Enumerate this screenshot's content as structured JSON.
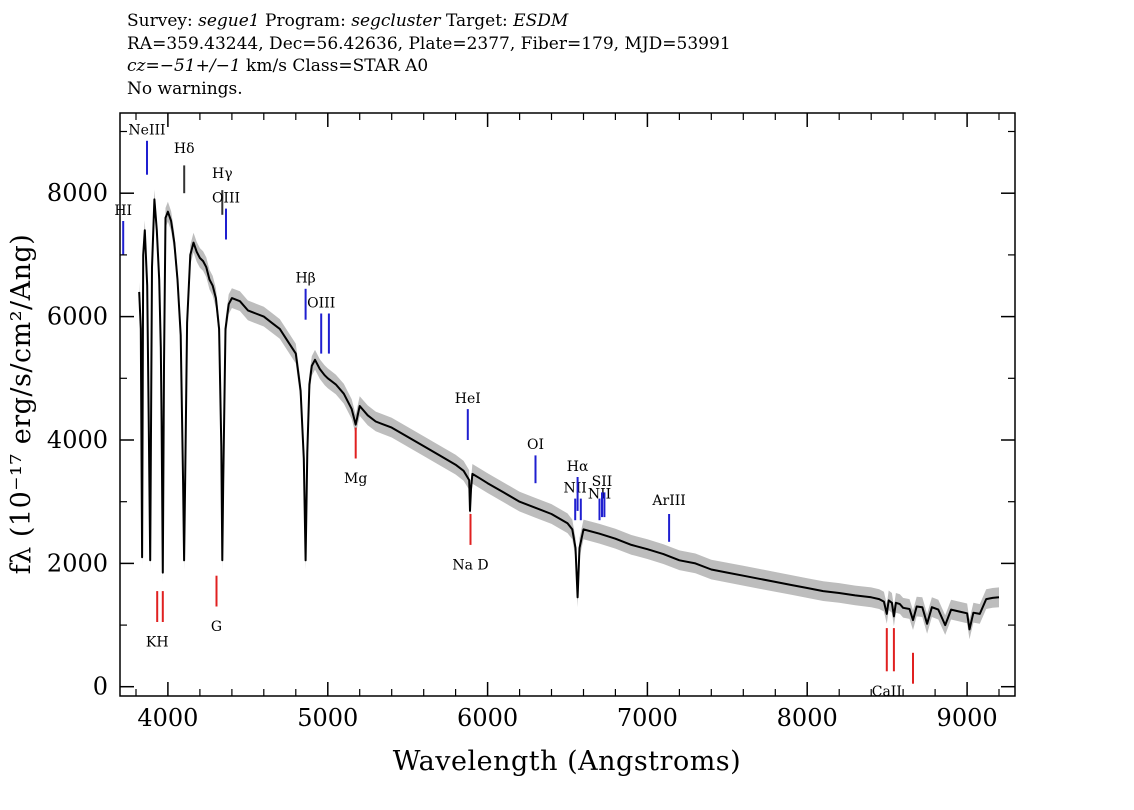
{
  "header": {
    "line1": {
      "survey_label": "Survey:",
      "survey": "segue1",
      "program_label": "Program:",
      "program": "segcluster",
      "target_label": "Target:",
      "target": "ESDM"
    },
    "line2": "RA=359.43244, Dec=56.42636, Plate=2377, Fiber=179, MJD=53991",
    "line3": {
      "cz_label": "cz=",
      "cz_value": "−51+/−1",
      "cz_rest": " km/s Class=STAR A0"
    },
    "line4": "No warnings."
  },
  "chart_data": {
    "type": "line",
    "title": "",
    "xlabel": "Wavelength (Angstroms)",
    "ylabel": "fλ (10⁻¹⁷ erg/s/cm²/Ang)",
    "xlim": [
      3700,
      9300
    ],
    "ylim": [
      -150,
      9300
    ],
    "x_ticks": [
      {
        "value": 4000,
        "label": "4000"
      },
      {
        "value": 5000,
        "label": "5000"
      },
      {
        "value": 6000,
        "label": "6000"
      },
      {
        "value": 7000,
        "label": "7000"
      },
      {
        "value": 8000,
        "label": "8000"
      },
      {
        "value": 9000,
        "label": "9000"
      }
    ],
    "y_ticks": [
      {
        "value": 0,
        "label": "0"
      },
      {
        "value": 2000,
        "label": "2000"
      },
      {
        "value": 4000,
        "label": "4000"
      },
      {
        "value": 6000,
        "label": "6000"
      },
      {
        "value": 8000,
        "label": "8000"
      }
    ],
    "series": [
      {
        "name": "spectrum",
        "x": [
          3820,
          3830,
          3838,
          3845,
          3855,
          3870,
          3880,
          3889,
          3900,
          3915,
          3930,
          3945,
          3955,
          3960,
          3968,
          3975,
          3985,
          4000,
          4020,
          4040,
          4060,
          4080,
          4095,
          4101,
          4108,
          4120,
          4140,
          4160,
          4180,
          4200,
          4220,
          4240,
          4260,
          4280,
          4300,
          4320,
          4334,
          4340,
          4346,
          4360,
          4380,
          4400,
          4450,
          4500,
          4550,
          4600,
          4650,
          4700,
          4750,
          4800,
          4830,
          4850,
          4861,
          4872,
          4885,
          4900,
          4920,
          4950,
          4980,
          5000,
          5050,
          5100,
          5150,
          5175,
          5200,
          5250,
          5300,
          5400,
          5500,
          5600,
          5700,
          5800,
          5850,
          5885,
          5890,
          5896,
          5905,
          5950,
          6000,
          6100,
          6200,
          6300,
          6400,
          6500,
          6530,
          6550,
          6563,
          6575,
          6600,
          6700,
          6800,
          6900,
          7000,
          7100,
          7200,
          7300,
          7400,
          7500,
          7600,
          7700,
          7800,
          7900,
          8000,
          8100,
          8200,
          8300,
          8400,
          8450,
          8480,
          8498,
          8510,
          8530,
          8542,
          8555,
          8580,
          8600,
          8640,
          8662,
          8685,
          8720,
          8750,
          8780,
          8820,
          8863,
          8900,
          8950,
          9000,
          9015,
          9040,
          9080,
          9120,
          9160,
          9200
        ],
        "y": [
          6400,
          5800,
          2100,
          7000,
          7400,
          6500,
          4200,
          2050,
          6800,
          7900,
          7400,
          6600,
          5500,
          4300,
          1850,
          5200,
          7600,
          7700,
          7550,
          7200,
          6600,
          5700,
          3300,
          2050,
          3400,
          5900,
          7000,
          7200,
          7050,
          6950,
          6900,
          6800,
          6600,
          6500,
          6300,
          5800,
          3900,
          2050,
          3300,
          5800,
          6200,
          6300,
          6250,
          6100,
          6050,
          6000,
          5900,
          5800,
          5600,
          5400,
          4800,
          3700,
          2050,
          3800,
          4900,
          5200,
          5300,
          5150,
          5050,
          5000,
          4900,
          4750,
          4500,
          4250,
          4550,
          4400,
          4300,
          4200,
          4050,
          3900,
          3750,
          3600,
          3500,
          3350,
          2850,
          3200,
          3450,
          3380,
          3300,
          3150,
          3000,
          2900,
          2800,
          2650,
          2550,
          2250,
          1450,
          2250,
          2550,
          2480,
          2400,
          2300,
          2230,
          2150,
          2050,
          2000,
          1900,
          1850,
          1800,
          1750,
          1700,
          1650,
          1600,
          1550,
          1520,
          1480,
          1450,
          1420,
          1380,
          1180,
          1400,
          1360,
          1140,
          1360,
          1340,
          1280,
          1260,
          1080,
          1300,
          1290,
          1020,
          1290,
          1250,
          1000,
          1250,
          1220,
          1190,
          930,
          1200,
          1180,
          1420,
          1440,
          1450
        ]
      }
    ],
    "error_band": {
      "name": "spectrum error",
      "half_width": 160,
      "color": "#bdbdbd"
    },
    "line_markers": [
      {
        "label": "HI",
        "x": 3720,
        "color": "#1f1fd0",
        "y_top": 7550,
        "y_bottom": 7000,
        "label_y": 7650
      },
      {
        "label": "NeIII",
        "x": 3869,
        "color": "#1f1fd0",
        "y_top": 8850,
        "y_bottom": 8300,
        "label_y": 8950
      },
      {
        "label": "Hδ",
        "x": 4102,
        "color": "#333333",
        "y_top": 8450,
        "y_bottom": 8000,
        "label_y": 8650
      },
      {
        "label": "Hγ",
        "x": 4340,
        "color": "#333333",
        "y_top": 8050,
        "y_bottom": 7650,
        "label_y": 8250
      },
      {
        "label": "OIII",
        "x": 4363,
        "color": "#1f1fd0",
        "y_top": 7750,
        "y_bottom": 7250,
        "label_y": 7850
      },
      {
        "label": "Hβ",
        "x": 4861,
        "color": "#1f1fd0",
        "y_top": 6450,
        "y_bottom": 5950,
        "label_y": 6550
      },
      {
        "label": "OIII",
        "x": 4959,
        "color": "#1f1fd0",
        "y_top": 6050,
        "y_bottom": 5400,
        "label_y": 6150
      },
      {
        "label": "",
        "x": 5007,
        "color": "#1f1fd0",
        "y_top": 6050,
        "y_bottom": 5400,
        "label_y": 6150
      },
      {
        "label": "Mg",
        "x": 5175,
        "color": "#e02020",
        "y_top": 4200,
        "y_bottom": 3700,
        "label_y": 3300
      },
      {
        "label": "HeI",
        "x": 5876,
        "color": "#1f1fd0",
        "y_top": 4500,
        "y_bottom": 4000,
        "label_y": 4600
      },
      {
        "label": "Na D",
        "x": 5893,
        "color": "#e02020",
        "y_top": 2800,
        "y_bottom": 2300,
        "label_y": 1900
      },
      {
        "label": "OI",
        "x": 6300,
        "color": "#1f1fd0",
        "y_top": 3750,
        "y_bottom": 3300,
        "label_y": 3850
      },
      {
        "label": "NII",
        "x": 6548,
        "color": "#1f1fd0",
        "y_top": 3050,
        "y_bottom": 2700,
        "label_y": 3150
      },
      {
        "label": "Hα",
        "x": 6563,
        "color": "#1f1fd0",
        "y_top": 3400,
        "y_bottom": 2850,
        "label_y": 3500
      },
      {
        "label": "",
        "x": 6583,
        "color": "#1f1fd0",
        "y_top": 3050,
        "y_bottom": 2700,
        "label_y": 3150
      },
      {
        "label": "NII",
        "x": 6700,
        "color": "#1f1fd0",
        "y_top": 3050,
        "y_bottom": 2700,
        "label_y": 3050
      },
      {
        "label": "SII",
        "x": 6716,
        "color": "#1f1fd0",
        "y_top": 3150,
        "y_bottom": 2750,
        "label_y": 3250
      },
      {
        "label": "",
        "x": 6731,
        "color": "#1f1fd0",
        "y_top": 3150,
        "y_bottom": 2750,
        "label_y": 3250
      },
      {
        "label": "ArIII",
        "x": 7136,
        "color": "#1f1fd0",
        "y_top": 2800,
        "y_bottom": 2350,
        "label_y": 2950
      },
      {
        "label": "G",
        "x": 4304,
        "color": "#e02020",
        "y_top": 1800,
        "y_bottom": 1300,
        "label_y": 900
      },
      {
        "label": "KH",
        "x": 3933,
        "color": "#e02020",
        "y_top": 1550,
        "y_bottom": 1050,
        "label_y": 650
      },
      {
        "label": "",
        "x": 3968,
        "color": "#e02020",
        "y_top": 1550,
        "y_bottom": 1050,
        "label_y": 650
      },
      {
        "label": "CaII",
        "x": 8498,
        "color": "#e02020",
        "y_top": 950,
        "y_bottom": 250,
        "label_y": -150
      },
      {
        "label": "",
        "x": 8542,
        "color": "#e02020",
        "y_top": 950,
        "y_bottom": 250,
        "label_y": -150
      },
      {
        "label": "",
        "x": 8662,
        "color": "#e02020",
        "y_top": 550,
        "y_bottom": 50,
        "label_y": -150
      }
    ],
    "grid": false,
    "legend": "none"
  }
}
